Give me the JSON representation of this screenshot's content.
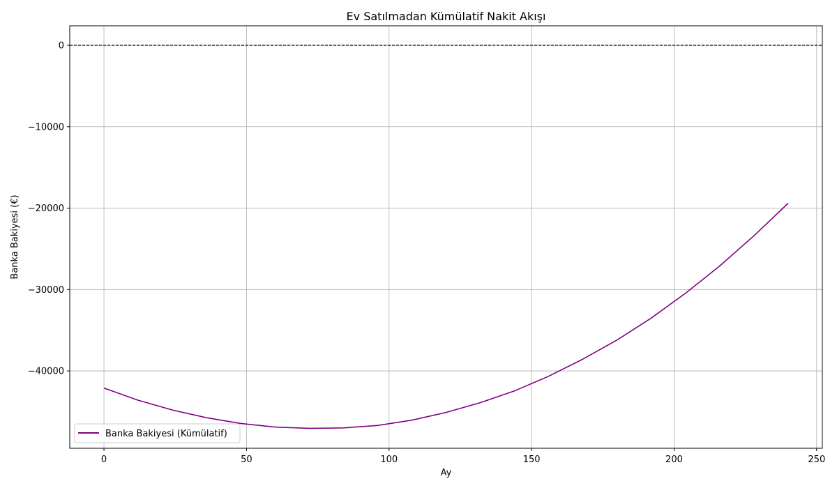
{
  "chart_data": {
    "type": "line",
    "title": "Ev Satılmadan Kümülatif Nakit Akışı",
    "xlabel": "Ay",
    "ylabel": "Banka Bakiyesi (€)",
    "xlim": [
      -12,
      252
    ],
    "ylim": [
      -49500,
      2400
    ],
    "xticks": [
      0,
      50,
      100,
      150,
      200,
      250
    ],
    "yticks": [
      0,
      -10000,
      -20000,
      -30000,
      -40000
    ],
    "ytick_labels": [
      "0",
      "−10000",
      "−20000",
      "−30000",
      "−40000"
    ],
    "grid": true,
    "reference_line": {
      "y": 0,
      "style": "dashed",
      "color": "#000000"
    },
    "legend_position": "lower-left",
    "series": [
      {
        "name": "Banka Bakiyesi (Kümülatif)",
        "color": "#800080",
        "x": [
          0,
          12,
          24,
          36,
          48,
          60,
          72,
          84,
          96,
          108,
          120,
          132,
          144,
          156,
          168,
          180,
          192,
          204,
          216,
          228,
          240
        ],
        "y": [
          -42100,
          -43600,
          -44800,
          -45750,
          -46450,
          -46900,
          -47050,
          -47000,
          -46700,
          -46050,
          -45100,
          -43900,
          -42450,
          -40650,
          -38550,
          -36200,
          -33500,
          -30450,
          -27100,
          -23400,
          -19400
        ]
      }
    ]
  }
}
